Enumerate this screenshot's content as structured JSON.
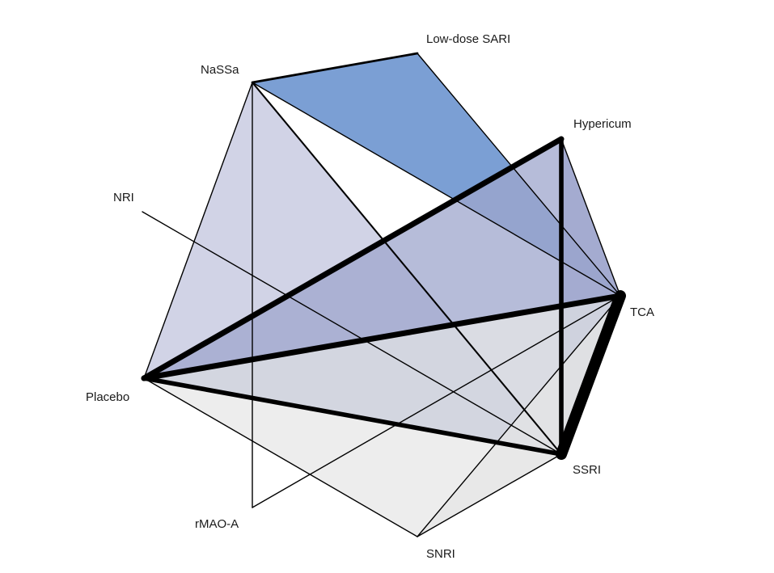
{
  "diagram": {
    "type": "network-graph",
    "nodes": [
      {
        "id": "low_dose_sari",
        "label": "Low-dose SARI"
      },
      {
        "id": "nassa",
        "label": "NaSSa"
      },
      {
        "id": "hypericum",
        "label": "Hypericum"
      },
      {
        "id": "nri",
        "label": "NRI"
      },
      {
        "id": "tca",
        "label": "TCA"
      },
      {
        "id": "placebo",
        "label": "Placebo"
      },
      {
        "id": "ssri",
        "label": "SSRI"
      },
      {
        "id": "rmaoa",
        "label": "rMAO-A"
      },
      {
        "id": "snri",
        "label": "SNRI"
      }
    ],
    "edges": [
      {
        "from": "nassa",
        "to": "low_dose_sari",
        "weight": 2
      },
      {
        "from": "low_dose_sari",
        "to": "tca",
        "weight": 1
      },
      {
        "from": "nassa",
        "to": "tca",
        "weight": 1
      },
      {
        "from": "nassa",
        "to": "ssri",
        "weight": 1.5
      },
      {
        "from": "nassa",
        "to": "placebo",
        "weight": 1
      },
      {
        "from": "nassa",
        "to": "rmaoa",
        "weight": 1
      },
      {
        "from": "nri",
        "to": "ssri",
        "weight": 1
      },
      {
        "from": "hypericum",
        "to": "tca",
        "weight": 1
      },
      {
        "from": "hypericum",
        "to": "ssri",
        "weight": 4
      },
      {
        "from": "hypericum",
        "to": "placebo",
        "weight": 5
      },
      {
        "from": "placebo",
        "to": "tca",
        "weight": 5
      },
      {
        "from": "placebo",
        "to": "ssri",
        "weight": 4
      },
      {
        "from": "placebo",
        "to": "snri",
        "weight": 1
      },
      {
        "from": "tca",
        "to": "ssri",
        "weight": 10
      },
      {
        "from": "tca",
        "to": "rmaoa",
        "weight": 1
      },
      {
        "from": "tca",
        "to": "snri",
        "weight": 1
      },
      {
        "from": "ssri",
        "to": "snri",
        "weight": 1
      }
    ],
    "triangles": [
      {
        "nodes": [
          "nassa",
          "low_dose_sari",
          "tca"
        ],
        "color": "#7b9fd4",
        "opacity": 1
      },
      {
        "nodes": [
          "nassa",
          "placebo",
          "ssri"
        ],
        "color": "#b8bcd8",
        "opacity": 0.65
      },
      {
        "nodes": [
          "hypericum",
          "placebo",
          "tca"
        ],
        "color": "#9ea6cc",
        "opacity": 0.75
      },
      {
        "nodes": [
          "hypericum",
          "tca",
          "ssri"
        ],
        "color": "#9ea6cc",
        "opacity": 0.75
      },
      {
        "nodes": [
          "placebo",
          "tca",
          "ssri"
        ],
        "color": "#d3d6de",
        "opacity": 0.85
      },
      {
        "nodes": [
          "placebo",
          "ssri",
          "snri"
        ],
        "color": "#e6e6e6",
        "opacity": 0.7
      },
      {
        "nodes": [
          "tca",
          "ssri",
          "snri"
        ],
        "color": "#e6e6e6",
        "opacity": 0.7
      }
    ],
    "node_weights": {
      "tca": 4,
      "ssri": 4,
      "placebo": 2,
      "hypericum": 2
    }
  }
}
